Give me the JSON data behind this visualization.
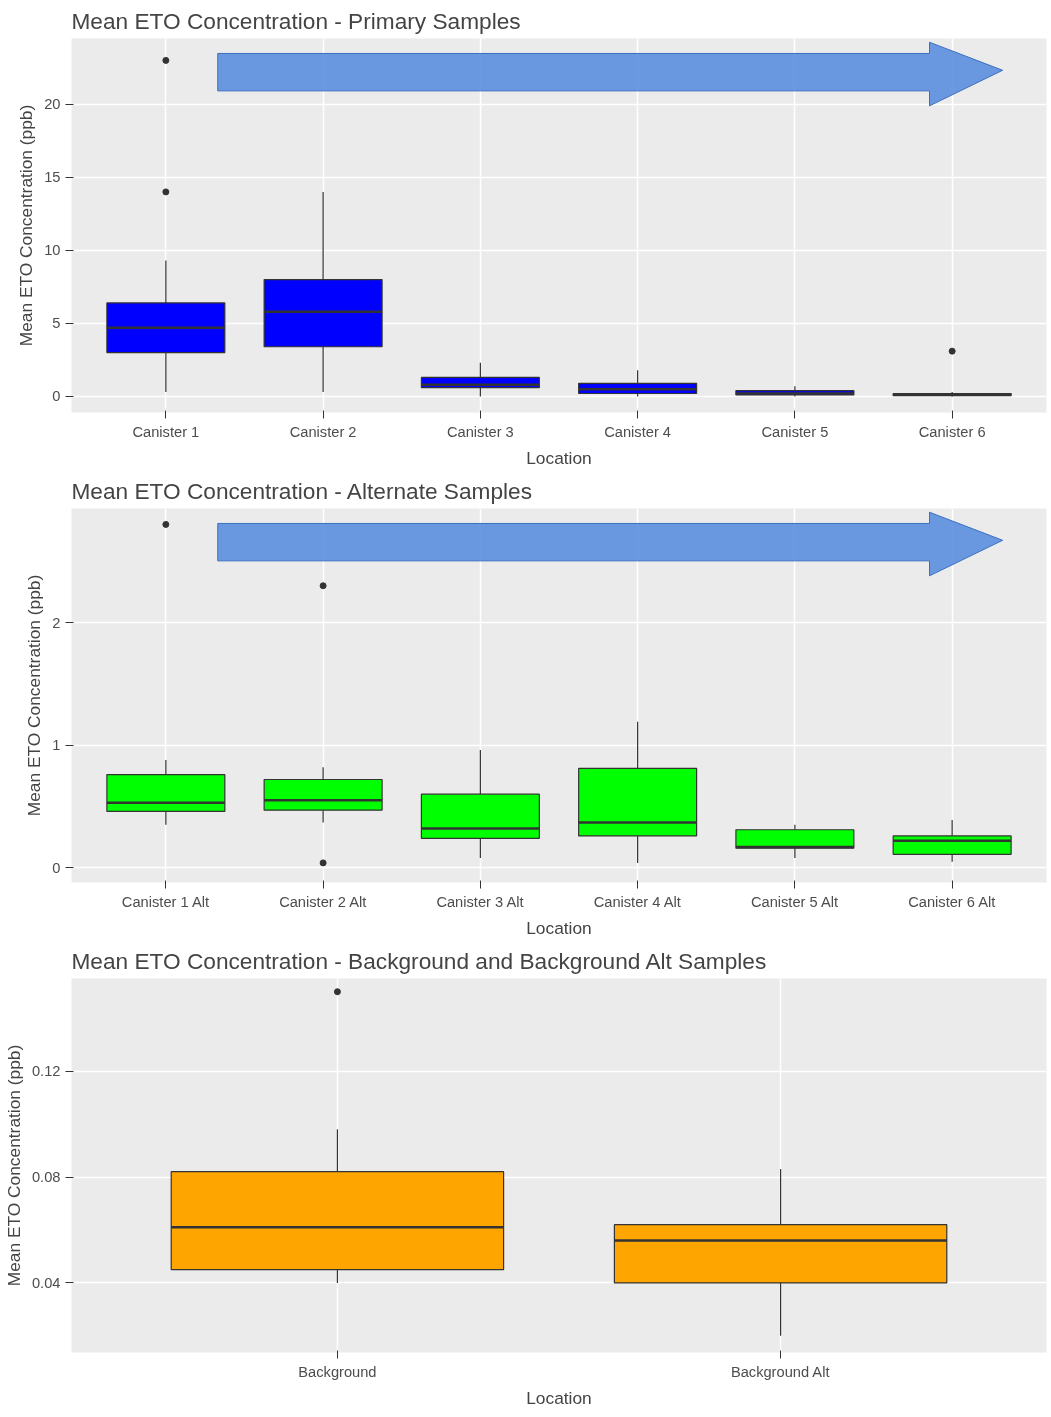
{
  "chart_data": [
    {
      "type": "box",
      "title": "Mean ETO Concentration - Primary Samples",
      "xlabel": "Location",
      "ylabel": "Mean ETO Concentration (ppb)",
      "categories": [
        "Canister 1",
        "Canister 2",
        "Canister 3",
        "Canister 4",
        "Canister 5",
        "Canister 6"
      ],
      "ylim": [
        -1.1,
        24.5
      ],
      "yticks": [
        0,
        5,
        10,
        15,
        20
      ],
      "grid": true,
      "series": [
        {
          "color": "#0000ff",
          "boxes": [
            {
              "low": 0.3,
              "q1": 3.0,
              "median": 4.7,
              "q3": 6.4,
              "high": 9.3,
              "outliers": [
                14,
                23
              ]
            },
            {
              "low": 0.3,
              "q1": 3.4,
              "median": 5.8,
              "q3": 8.0,
              "high": 14.0
            },
            {
              "low": 0.0,
              "q1": 0.6,
              "median": 0.8,
              "q3": 1.3,
              "high": 2.3
            },
            {
              "low": 0.0,
              "q1": 0.2,
              "median": 0.5,
              "q3": 0.9,
              "high": 1.8
            },
            {
              "low": 0.0,
              "q1": 0.1,
              "median": 0.2,
              "q3": 0.4,
              "high": 0.7
            },
            {
              "low": 0.0,
              "q1": 0.05,
              "median": 0.15,
              "q3": 0.2,
              "high": 0.3,
              "outliers": [
                3.1
              ]
            }
          ]
        }
      ]
    },
    {
      "type": "box",
      "title": "Mean ETO Concentration - Alternate Samples",
      "xlabel": "Location",
      "ylabel": "Mean ETO Concentration (ppb)",
      "categories": [
        "Canister 1 Alt",
        "Canister 2 Alt",
        "Canister 3 Alt",
        "Canister 4 Alt",
        "Canister 5 Alt",
        "Canister 6 Alt"
      ],
      "ylim": [
        -0.12,
        2.93
      ],
      "yticks": [
        0,
        1,
        2
      ],
      "grid": true,
      "series": [
        {
          "color": "#00ff00",
          "boxes": [
            {
              "low": 0.35,
              "q1": 0.46,
              "median": 0.53,
              "q3": 0.76,
              "high": 0.88,
              "outliers": [
                2.8
              ]
            },
            {
              "low": 0.37,
              "q1": 0.47,
              "median": 0.55,
              "q3": 0.72,
              "high": 0.82,
              "outliers": [
                2.3,
                0.04
              ]
            },
            {
              "low": 0.08,
              "q1": 0.24,
              "median": 0.32,
              "q3": 0.6,
              "high": 0.96
            },
            {
              "low": 0.04,
              "q1": 0.26,
              "median": 0.37,
              "q3": 0.81,
              "high": 1.19
            },
            {
              "low": 0.08,
              "q1": 0.16,
              "median": 0.17,
              "q3": 0.31,
              "high": 0.35
            },
            {
              "low": 0.05,
              "q1": 0.11,
              "median": 0.22,
              "q3": 0.26,
              "high": 0.39
            }
          ]
        }
      ]
    },
    {
      "type": "box",
      "title": "Mean ETO Concentration - Background and Background Alt Samples",
      "xlabel": "Location",
      "ylabel": "Mean ETO Concentration (ppb)",
      "categories": [
        "Background",
        "Background Alt"
      ],
      "ylim": [
        0.0137,
        0.155
      ],
      "yticks": [
        0.04,
        0.08,
        0.12
      ],
      "grid": true,
      "series": [
        {
          "color": "#ffa500",
          "boxes": [
            {
              "low": 0.04,
              "q1": 0.045,
              "median": 0.061,
              "q3": 0.082,
              "high": 0.098,
              "outliers": [
                0.15
              ]
            },
            {
              "low": 0.02,
              "q1": 0.04,
              "median": 0.056,
              "q3": 0.062,
              "high": 0.083
            }
          ]
        }
      ]
    }
  ]
}
